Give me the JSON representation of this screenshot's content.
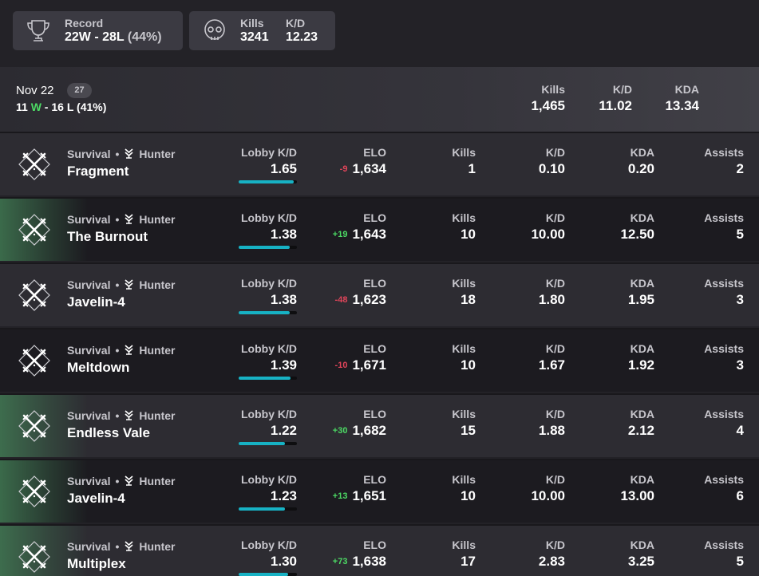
{
  "summary": {
    "record": {
      "label": "Record",
      "value": "22W - 28L",
      "pct": "(44%)",
      "icon": "trophy-icon"
    },
    "kills": {
      "label": "Kills",
      "value": "3241",
      "icon": "skull-icon"
    },
    "kd": {
      "label": "K/D",
      "value": "12.23"
    }
  },
  "day": {
    "date": "Nov 22",
    "count": "27",
    "wins": "11",
    "w_letter": "W",
    "dash": " - ",
    "losses": "16",
    "l_letter": "L",
    "pct": "(41%)",
    "stats": [
      {
        "label": "Kills",
        "value": "1,465"
      },
      {
        "label": "K/D",
        "value": "11.02"
      },
      {
        "label": "KDA",
        "value": "13.34"
      }
    ]
  },
  "labels": {
    "lobby_kd": "Lobby K/D",
    "elo": "ELO",
    "kills": "Kills",
    "kd": "K/D",
    "kda": "KDA",
    "assists": "Assists",
    "dot": "•"
  },
  "colors": {
    "win_accent": "#407852",
    "bar_fill": "#17b2c4",
    "elo_up": "#4cd964",
    "elo_down": "#e0455a"
  },
  "matches": [
    {
      "mode": "Survival",
      "role": "Hunter",
      "map": "Fragment",
      "lobby_kd": "1.65",
      "lobby_fill": 0.95,
      "elo_delta": "-9",
      "elo": "1,634",
      "kills": "1",
      "kd": "0.10",
      "kda": "0.20",
      "assists": "2",
      "win": false
    },
    {
      "mode": "Survival",
      "role": "Hunter",
      "map": "The Burnout",
      "lobby_kd": "1.38",
      "lobby_fill": 0.88,
      "elo_delta": "+19",
      "elo": "1,643",
      "kills": "10",
      "kd": "10.00",
      "kda": "12.50",
      "assists": "5",
      "win": true
    },
    {
      "mode": "Survival",
      "role": "Hunter",
      "map": "Javelin-4",
      "lobby_kd": "1.38",
      "lobby_fill": 0.88,
      "elo_delta": "-48",
      "elo": "1,623",
      "kills": "18",
      "kd": "1.80",
      "kda": "1.95",
      "assists": "3",
      "win": false
    },
    {
      "mode": "Survival",
      "role": "Hunter",
      "map": "Meltdown",
      "lobby_kd": "1.39",
      "lobby_fill": 0.89,
      "elo_delta": "-10",
      "elo": "1,671",
      "kills": "10",
      "kd": "1.67",
      "kda": "1.92",
      "assists": "3",
      "win": false
    },
    {
      "mode": "Survival",
      "role": "Hunter",
      "map": "Endless Vale",
      "lobby_kd": "1.22",
      "lobby_fill": 0.8,
      "elo_delta": "+30",
      "elo": "1,682",
      "kills": "15",
      "kd": "1.88",
      "kda": "2.12",
      "assists": "4",
      "win": true
    },
    {
      "mode": "Survival",
      "role": "Hunter",
      "map": "Javelin-4",
      "lobby_kd": "1.23",
      "lobby_fill": 0.8,
      "elo_delta": "+13",
      "elo": "1,651",
      "kills": "10",
      "kd": "10.00",
      "kda": "13.00",
      "assists": "6",
      "win": true
    },
    {
      "mode": "Survival",
      "role": "Hunter",
      "map": "Multiplex",
      "lobby_kd": "1.30",
      "lobby_fill": 0.85,
      "elo_delta": "+73",
      "elo": "1,638",
      "kills": "17",
      "kd": "2.83",
      "kda": "3.25",
      "assists": "5",
      "win": true
    }
  ]
}
